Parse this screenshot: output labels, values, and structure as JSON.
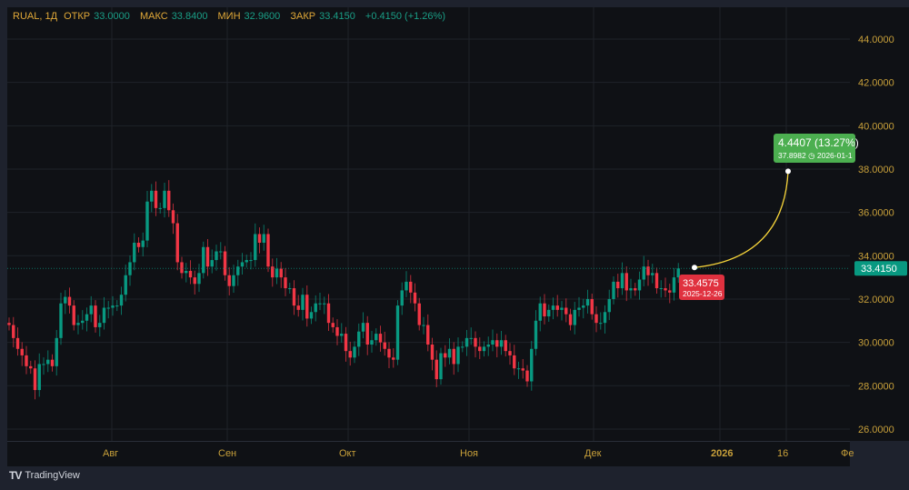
{
  "legend": {
    "symbol": "RUAL, 1Д",
    "open_label": "ОТКР",
    "open": "33.0000",
    "high_label": "МАКС",
    "high": "33.8400",
    "low_label": "МИН",
    "low": "32.9600",
    "close_label": "ЗАКР",
    "close": "33.4150",
    "change": "+0.4150 (+1.26%)"
  },
  "colors": {
    "up": "#089981",
    "down": "#f23645",
    "grid": "#1f2229",
    "axis_text": "#c8a03a",
    "projection": "#f5d33a",
    "label_green": "#4caf50",
    "label_red": "#e0313f"
  },
  "chart_data": {
    "type": "candlestick",
    "title": "RUAL, 1Д",
    "ylim": [
      26,
      44
    ],
    "y_ticks": [
      "44.0000",
      "42.0000",
      "40.0000",
      "38.0000",
      "36.0000",
      "34.0000",
      "32.0000",
      "30.0000",
      "28.0000",
      "26.0000"
    ],
    "x_ticks": [
      "Авг",
      "Сен",
      "Окт",
      "Ноя",
      "Дек",
      "2026",
      "16",
      "Фе"
    ],
    "current_price": "33.4150",
    "closes": [
      30.8,
      30.2,
      29.7,
      29.4,
      28.9,
      28.8,
      27.8,
      29.0,
      29.0,
      29.2,
      28.9,
      30.2,
      31.8,
      32.1,
      31.7,
      30.8,
      30.9,
      31.0,
      31.3,
      31.7,
      30.7,
      30.9,
      31.6,
      31.6,
      31.7,
      31.7,
      32.2,
      33.1,
      33.7,
      34.6,
      34.4,
      34.7,
      36.5,
      37.0,
      36.2,
      36.2,
      37.0,
      36.1,
      35.5,
      33.7,
      33.2,
      33.3,
      33.0,
      32.7,
      33.2,
      34.4,
      33.5,
      33.8,
      34.2,
      34.2,
      33.1,
      32.6,
      33.1,
      33.5,
      33.7,
      33.8,
      33.8,
      35.0,
      34.6,
      35.0,
      33.5,
      33.0,
      33.4,
      33.0,
      32.5,
      32.5,
      31.7,
      31.5,
      32.2,
      31.1,
      31.4,
      31.8,
      31.8,
      31.8,
      30.9,
      30.7,
      30.3,
      30.4,
      29.6,
      29.3,
      29.8,
      30.5,
      30.9,
      29.9,
      30.1,
      30.4,
      30.0,
      29.7,
      29.3,
      29.2,
      31.7,
      32.4,
      32.8,
      32.3,
      31.8,
      30.8,
      30.8,
      29.9,
      29.2,
      28.3,
      29.5,
      29.3,
      29.7,
      29.0,
      29.8,
      29.8,
      30.2,
      30.2,
      29.8,
      29.6,
      29.8,
      29.9,
      30.1,
      29.8,
      30.1,
      29.6,
      29.4,
      28.8,
      28.8,
      28.7,
      28.2,
      29.7,
      31.0,
      31.8,
      31.2,
      31.5,
      31.7,
      31.5,
      31.6,
      31.3,
      30.8,
      31.5,
      31.6,
      31.7,
      32.0,
      31.3,
      30.9,
      30.9,
      31.4,
      32.0,
      32.8,
      32.5,
      33.2,
      32.4,
      32.5,
      32.4,
      32.9,
      33.5,
      33.1,
      33.2,
      32.5,
      32.5,
      32.4,
      32.3,
      33.0,
      33.415
    ],
    "projection": {
      "start_price": "33.4575",
      "start_date": "2025-12-26",
      "end_price": "37.8982",
      "end_date": "2026-01-1",
      "change": "4.4407 (13.27%)"
    }
  },
  "footer": {
    "brand": "TradingView",
    "logo": "17"
  }
}
